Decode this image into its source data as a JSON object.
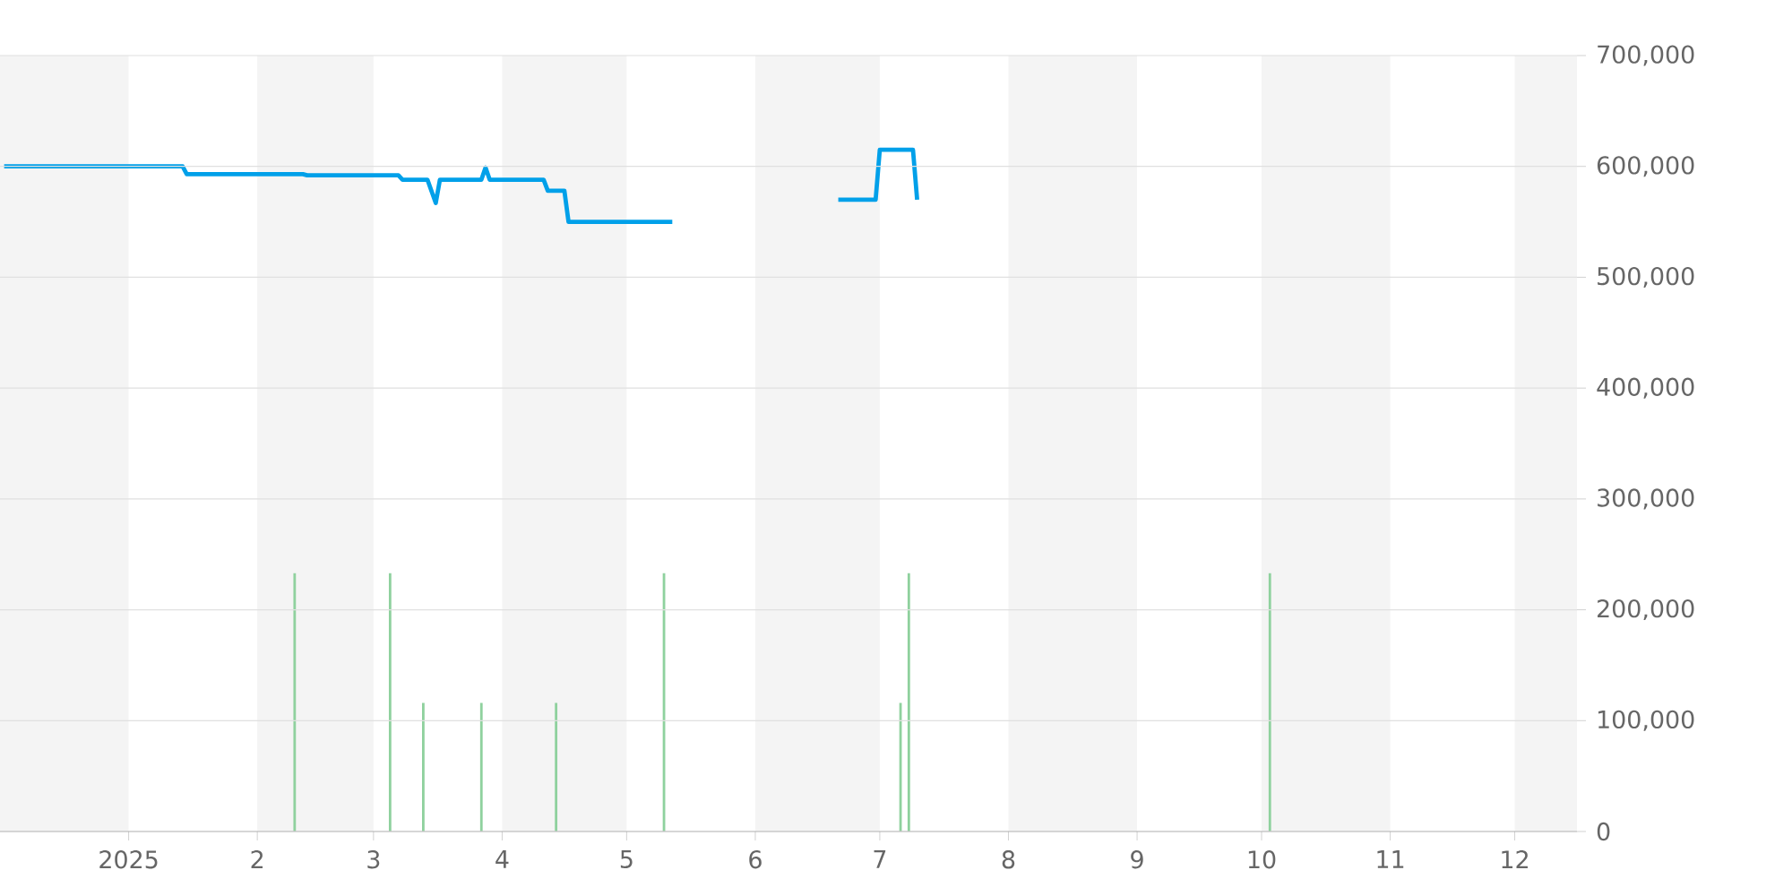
{
  "chart_data": {
    "type": "line",
    "xlim": [
      "2024-12-01",
      "2025-12-16"
    ],
    "xticks": [
      {
        "value": "2025-01-01",
        "label": "2025"
      },
      {
        "value": "2025-02-01",
        "label": "2"
      },
      {
        "value": "2025-03-01",
        "label": "3"
      },
      {
        "value": "2025-04-01",
        "label": "4"
      },
      {
        "value": "2025-05-01",
        "label": "5"
      },
      {
        "value": "2025-06-01",
        "label": "6"
      },
      {
        "value": "2025-07-01",
        "label": "7"
      },
      {
        "value": "2025-08-01",
        "label": "8"
      },
      {
        "value": "2025-09-01",
        "label": "9"
      },
      {
        "value": "2025-10-01",
        "label": "10"
      },
      {
        "value": "2025-11-01",
        "label": "11"
      },
      {
        "value": "2025-12-01",
        "label": "12"
      }
    ],
    "ylim": [
      0,
      700000
    ],
    "yticks": [
      {
        "value": 0,
        "label": "0"
      },
      {
        "value": 100000,
        "label": "100,000"
      },
      {
        "value": 200000,
        "label": "200,000"
      },
      {
        "value": 300000,
        "label": "300,000"
      },
      {
        "value": 400000,
        "label": "400,000"
      },
      {
        "value": 500000,
        "label": "500,000"
      },
      {
        "value": 600000,
        "label": "600,000"
      },
      {
        "value": 700000,
        "label": "700,000"
      }
    ],
    "grid": "y",
    "bands": [
      {
        "axis": "x",
        "from": "2024-12-01",
        "to": "2025-01-01",
        "color": "#f4f4f4"
      },
      {
        "axis": "x",
        "from": "2025-02-01",
        "to": "2025-03-01",
        "color": "#f4f4f4"
      },
      {
        "axis": "x",
        "from": "2025-04-01",
        "to": "2025-05-01",
        "color": "#f4f4f4"
      },
      {
        "axis": "x",
        "from": "2025-06-01",
        "to": "2025-07-01",
        "color": "#f4f4f4"
      },
      {
        "axis": "x",
        "from": "2025-08-01",
        "to": "2025-09-01",
        "color": "#f4f4f4"
      },
      {
        "axis": "x",
        "from": "2025-10-01",
        "to": "2025-11-01",
        "color": "#f4f4f4"
      },
      {
        "axis": "x",
        "from": "2025-12-01",
        "to": "2025-12-16",
        "color": "#f4f4f4"
      }
    ],
    "series": [
      {
        "type": "bar",
        "color": "#8fd19e",
        "x": [
          "2025-02-10",
          "2025-03-05",
          "2025-03-13",
          "2025-03-27",
          "2025-04-14",
          "2025-05-10",
          "2025-07-06",
          "2025-07-08",
          "2025-10-03"
        ],
        "values": [
          233000,
          233000,
          116000,
          116000,
          116000,
          233000,
          116000,
          233000,
          233000
        ]
      },
      {
        "color": "#00a0e9",
        "x": [
          "2024-12-02",
          "2025-01-14",
          "2025-01-15",
          "2025-02-12",
          "2025-02-13",
          "2025-03-07",
          "2025-03-08",
          "2025-03-14",
          "2025-03-16",
          "2025-03-17",
          "2025-03-27",
          "2025-03-28",
          "2025-03-29",
          "2025-04-11",
          "2025-04-12",
          "2025-04-16",
          "2025-04-17",
          "2025-05-12",
          "2025-06-01",
          "2025-06-21",
          "2025-06-30",
          "2025-07-01",
          "2025-07-09",
          "2025-07-10"
        ],
        "values": [
          600000,
          600000,
          593000,
          593000,
          592000,
          592000,
          588000,
          588000,
          567000,
          588000,
          588000,
          599000,
          588000,
          588000,
          578000,
          578000,
          550000,
          550000,
          null,
          570000,
          570000,
          615000,
          615000,
          570000
        ]
      }
    ]
  }
}
